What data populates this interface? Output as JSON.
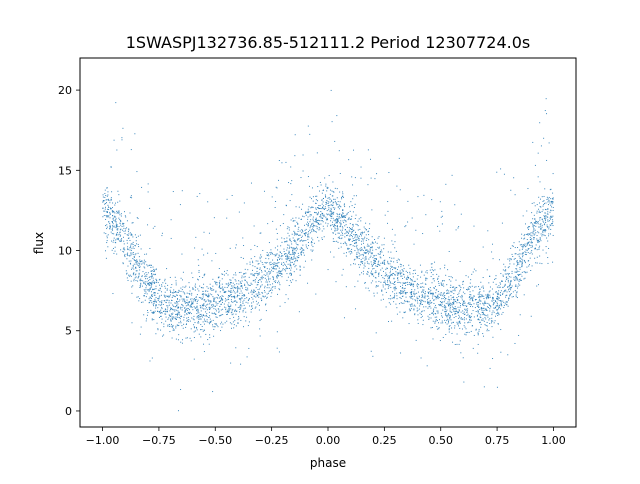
{
  "chart_data": {
    "type": "scatter",
    "title": "1SWASPJ132736.85-512111.2 Period 12307724.0s",
    "xlabel": "phase",
    "ylabel": "flux",
    "xlim": [
      -1.1,
      1.1
    ],
    "ylim": [
      -1.0,
      22.0
    ],
    "x_ticks": [
      -1.0,
      -0.75,
      -0.5,
      -0.25,
      0.0,
      0.25,
      0.5,
      0.75,
      1.0
    ],
    "x_tick_labels": [
      "−1.00",
      "−0.75",
      "−0.50",
      "−0.25",
      "0.00",
      "0.25",
      "0.50",
      "0.75",
      "1.00"
    ],
    "y_ticks": [
      0,
      5,
      10,
      15,
      20
    ],
    "y_tick_labels": [
      "0",
      "5",
      "10",
      "15",
      "20"
    ],
    "grid": false,
    "legend": "none",
    "marker_color": "#1f77b4",
    "trend": {
      "phase": [
        0.0,
        0.05,
        0.1,
        0.15,
        0.2,
        0.25,
        0.3,
        0.35,
        0.4,
        0.45,
        0.5,
        0.55,
        0.6,
        0.65,
        0.7,
        0.75,
        0.8,
        0.85,
        0.9,
        0.95,
        1.0
      ],
      "flux": [
        12.8,
        12.0,
        11.2,
        10.2,
        9.4,
        8.7,
        8.1,
        7.6,
        7.2,
        7.0,
        6.8,
        6.6,
        6.4,
        6.5,
        6.5,
        7.0,
        7.8,
        9.0,
        10.6,
        11.8,
        12.6
      ]
    }
  }
}
